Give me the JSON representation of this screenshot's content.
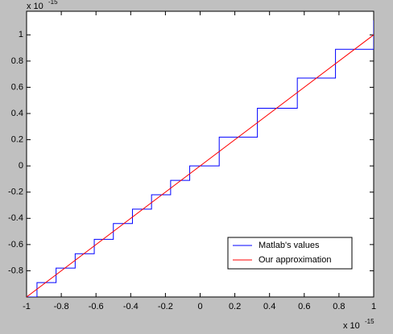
{
  "chart_data": {
    "type": "line",
    "x_multiplier": {
      "base": "x 10",
      "exponent": "-15"
    },
    "y_multiplier": {
      "base": "x 10",
      "exponent": "-15"
    },
    "xlim": [
      -1,
      1
    ],
    "ylim": [
      -1,
      1.18
    ],
    "xticks": [
      -1,
      -0.8,
      -0.6,
      -0.4,
      -0.2,
      0,
      0.2,
      0.4,
      0.6,
      0.8,
      1
    ],
    "yticks": [
      -0.8,
      -0.6,
      -0.4,
      -0.2,
      0,
      0.2,
      0.4,
      0.6,
      0.8,
      1
    ],
    "grid": false,
    "legend": "lower right",
    "series": [
      {
        "name": "Matlab's values",
        "color": "#0000ff",
        "x": [
          -1,
          -0.94,
          -0.94,
          -0.83,
          -0.83,
          -0.72,
          -0.72,
          -0.61,
          -0.61,
          -0.5,
          -0.5,
          -0.39,
          -0.39,
          -0.28,
          -0.28,
          -0.17,
          -0.17,
          -0.06,
          -0.06,
          0.11,
          0.11,
          0.33,
          0.33,
          0.56,
          0.56,
          0.78,
          0.78,
          1,
          1
        ],
        "values": [
          -1,
          -1,
          -0.89,
          -0.89,
          -0.78,
          -0.78,
          -0.67,
          -0.67,
          -0.56,
          -0.56,
          -0.44,
          -0.44,
          -0.33,
          -0.33,
          -0.22,
          -0.22,
          -0.11,
          -0.11,
          0,
          0,
          0.22,
          0.22,
          0.44,
          0.44,
          0.67,
          0.67,
          0.89,
          0.89,
          1.11
        ]
      },
      {
        "name": "Our approximation",
        "color": "#ff0000",
        "x": [
          -1,
          1
        ],
        "values": [
          -1,
          1
        ]
      }
    ]
  }
}
